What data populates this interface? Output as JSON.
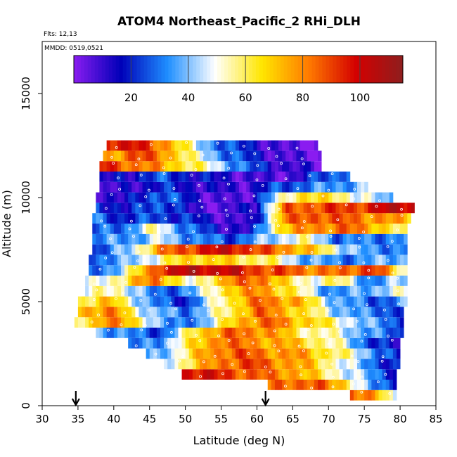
{
  "chart_data": {
    "type": "heatmap",
    "title": "ATOM4 Northeast_Pacific_2 RHi_DLH",
    "flights_label": "Flts: 12,13",
    "date_label": "MMDD: 0519,0521",
    "xlabel": "Latitude (deg N)",
    "ylabel": "Altitude (m)",
    "xlim": [
      30,
      85
    ],
    "ylim": [
      0,
      17500
    ],
    "x_ticks": [
      "30",
      "35",
      "40",
      "45",
      "50",
      "55",
      "60",
      "65",
      "70",
      "75",
      "80",
      "85"
    ],
    "y_ticks": [
      "0",
      "5000",
      "10000",
      "15000"
    ],
    "grid": false,
    "colorbar": {
      "placement": "top",
      "range": [
        0,
        115
      ],
      "tick_values": [
        20,
        40,
        60,
        80,
        100
      ],
      "tick_labels": [
        "20",
        "40",
        "60",
        "80",
        "100"
      ],
      "colors": [
        "#8a1cf0",
        "#0000b8",
        "#1f8fff",
        "#ffffff",
        "#ffe600",
        "#ff7a00",
        "#d40000",
        "#8e1e1e"
      ]
    },
    "arrows_latitude": [
      34.7,
      61.2
    ],
    "rows": [
      {
        "alt": 500,
        "lat_min": 73,
        "lat_max": 79.5,
        "rhi": [
          90,
          85,
          75,
          60,
          40
        ]
      },
      {
        "alt": 1000,
        "lat_min": 61.5,
        "lat_max": 79.5,
        "rhi": [
          80,
          88,
          85,
          70,
          30,
          25
        ]
      },
      {
        "alt": 1500,
        "lat_min": 49.5,
        "lat_max": 79.5,
        "rhi": [
          100,
          95,
          85,
          80,
          60,
          40,
          20
        ]
      },
      {
        "alt": 2000,
        "lat_min": 47,
        "lat_max": 80,
        "rhi": [
          45,
          65,
          85,
          90,
          80,
          70,
          50,
          30,
          15
        ]
      },
      {
        "alt": 2500,
        "lat_min": 44.5,
        "lat_max": 80,
        "rhi": [
          30,
          50,
          80,
          88,
          80,
          75,
          60,
          40,
          15
        ]
      },
      {
        "alt": 3000,
        "lat_min": 42,
        "lat_max": 80,
        "rhi": [
          25,
          35,
          60,
          85,
          80,
          75,
          65,
          50,
          25,
          10
        ]
      },
      {
        "alt": 3500,
        "lat_min": 37.5,
        "lat_max": 80.5,
        "rhi": [
          40,
          30,
          25,
          70,
          85,
          80,
          60,
          50,
          35,
          20
        ]
      },
      {
        "alt": 4000,
        "lat_min": 34.5,
        "lat_max": 80.5,
        "rhi": [
          50,
          85,
          60,
          25,
          40,
          75,
          85,
          70,
          55,
          35,
          25
        ]
      },
      {
        "alt": 4500,
        "lat_min": 35,
        "lat_max": 80.5,
        "rhi": [
          75,
          80,
          40,
          30,
          55,
          85,
          70,
          45,
          30,
          25
        ]
      },
      {
        "alt": 5000,
        "lat_min": 35,
        "lat_max": 81,
        "rhi": [
          60,
          70,
          30,
          20,
          60,
          85,
          75,
          40,
          25,
          35
        ]
      },
      {
        "alt": 5500,
        "lat_min": 36,
        "lat_max": 81,
        "rhi": [
          50,
          55,
          25,
          35,
          70,
          80,
          55,
          30,
          40,
          50
        ]
      },
      {
        "alt": 6000,
        "lat_min": 36,
        "lat_max": 81,
        "rhi": [
          40,
          60,
          85,
          45,
          80,
          85,
          50,
          60,
          30,
          45
        ]
      },
      {
        "alt": 6500,
        "lat_min": 36.5,
        "lat_max": 81,
        "rhi": [
          25,
          45,
          95,
          105,
          100,
          90,
          85,
          80,
          95,
          50
        ]
      },
      {
        "alt": 7000,
        "lat_min": 36.5,
        "lat_max": 81,
        "rhi": [
          30,
          35,
          55,
          70,
          65,
          60,
          40,
          30,
          35,
          40
        ]
      },
      {
        "alt": 7500,
        "lat_min": 37,
        "lat_max": 81,
        "rhi": [
          20,
          40,
          80,
          95,
          100,
          85,
          75,
          50,
          30,
          35
        ]
      },
      {
        "alt": 8000,
        "lat_min": 37,
        "lat_max": 81,
        "rhi": [
          30,
          35,
          45,
          30,
          25,
          40,
          55,
          30,
          30,
          35
        ]
      },
      {
        "alt": 8500,
        "lat_min": 37,
        "lat_max": 81,
        "rhi": [
          25,
          30,
          55,
          30,
          15,
          10,
          70,
          80,
          85,
          75,
          50
        ]
      },
      {
        "alt": 9000,
        "lat_min": 37,
        "lat_max": 81.5,
        "rhi": [
          30,
          20,
          25,
          20,
          10,
          5,
          80,
          90,
          85,
          80,
          70
        ]
      },
      {
        "alt": 9500,
        "lat_min": 37.5,
        "lat_max": 82,
        "rhi": [
          25,
          15,
          30,
          10,
          5,
          15,
          85,
          90,
          90,
          100,
          105
        ]
      },
      {
        "alt": 10000,
        "lat_min": 37.5,
        "lat_max": 79,
        "rhi": [
          15,
          10,
          30,
          20,
          5,
          5,
          40,
          70,
          60,
          50,
          30
        ]
      },
      {
        "alt": 10500,
        "lat_min": 38,
        "lat_max": 75.5,
        "rhi": [
          5,
          10,
          20,
          15,
          10,
          10,
          25,
          30,
          35,
          40
        ]
      },
      {
        "alt": 11000,
        "lat_min": 38,
        "lat_max": 73,
        "rhi": [
          10,
          15,
          25,
          20,
          15,
          10,
          5,
          10,
          25,
          35
        ]
      },
      {
        "alt": 11500,
        "lat_min": 38,
        "lat_max": 69,
        "rhi": [
          95,
          85,
          75,
          60,
          40,
          20,
          10,
          5
        ]
      },
      {
        "alt": 12000,
        "lat_min": 38.5,
        "lat_max": 69,
        "rhi": [
          70,
          90,
          80,
          50,
          30,
          15,
          5,
          3
        ]
      },
      {
        "alt": 12500,
        "lat_min": 39,
        "lat_max": 68.5,
        "rhi": [
          100,
          95,
          80,
          45,
          25,
          15,
          3,
          2
        ]
      }
    ]
  }
}
